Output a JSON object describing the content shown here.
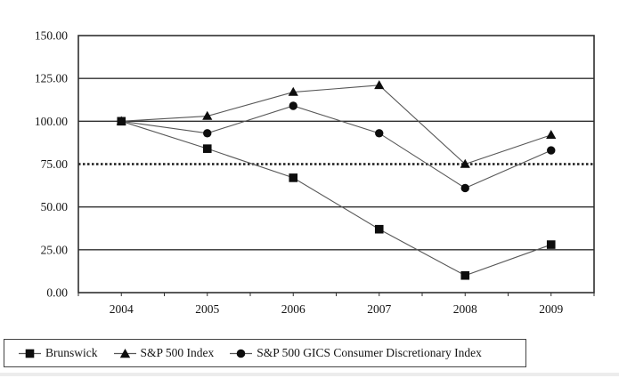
{
  "chart_data": {
    "type": "line",
    "categories": [
      "2004",
      "2005",
      "2006",
      "2007",
      "2008",
      "2009"
    ],
    "series": [
      {
        "name": "Brunswick",
        "marker": "square",
        "values": [
          100,
          84,
          67,
          37,
          10,
          28
        ]
      },
      {
        "name": "S&P 500 Index",
        "marker": "triangle",
        "values": [
          100,
          103,
          117,
          121,
          75,
          92
        ]
      },
      {
        "name": "S&P 500 GICS Consumer Discretionary Index",
        "marker": "circle",
        "values": [
          100,
          93,
          109,
          93,
          61,
          83
        ]
      }
    ],
    "ylim": [
      0,
      150
    ],
    "ytick_step": 25,
    "ytick_labels": [
      "0.00",
      "25.00",
      "50.00",
      "75.00",
      "100.00",
      "125.00",
      "150.00"
    ],
    "special_gridline": {
      "value": 75,
      "style": "dotted"
    },
    "grid": "horizontal",
    "legend_position": "bottom-left",
    "colors": {
      "grid": "#2f2f2f",
      "series_line": "#575757",
      "marker": "#0d0d0d",
      "text": "#141414",
      "legend_border": "#444444",
      "page_edge": "#ececec"
    }
  }
}
